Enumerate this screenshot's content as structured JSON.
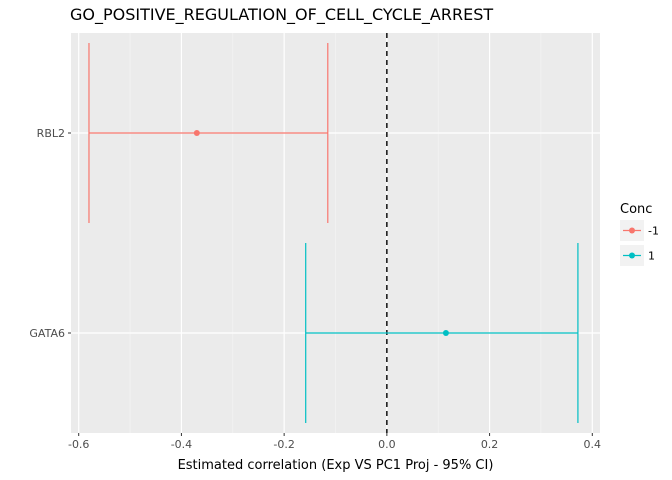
{
  "chart_data": {
    "type": "errorbar",
    "title": "GO_POSITIVE_REGULATION_OF_CELL_CYCLE_ARREST",
    "xlabel": "Estimated correlation (Exp VS PC1 Proj - 95% CI)",
    "ylabel": "",
    "xlim": [
      -0.615,
      0.415
    ],
    "x_ticks": [
      -0.6,
      -0.4,
      -0.2,
      0.0,
      0.2,
      0.4
    ],
    "x_tick_labels": [
      "-0.6",
      "-0.4",
      "-0.2",
      "0.0",
      "0.2",
      "0.4"
    ],
    "categories": [
      "RBL2",
      "GATA6"
    ],
    "reference_line": {
      "x": 0,
      "style": "dashed"
    },
    "grid": true,
    "background": "#ebebeb",
    "legend": {
      "title": "Conc",
      "position": "right",
      "entries": [
        {
          "label": "-1",
          "color": "#f8766d"
        },
        {
          "label": "1",
          "color": "#00bfc4"
        }
      ]
    },
    "series": [
      {
        "gene": "RBL2",
        "group": "-1",
        "estimate": -0.37,
        "lower": -0.58,
        "upper": -0.115,
        "color": "#f8766d"
      },
      {
        "gene": "GATA6",
        "group": "1",
        "estimate": 0.115,
        "lower": -0.158,
        "upper": 0.372,
        "color": "#00bfc4"
      }
    ]
  }
}
